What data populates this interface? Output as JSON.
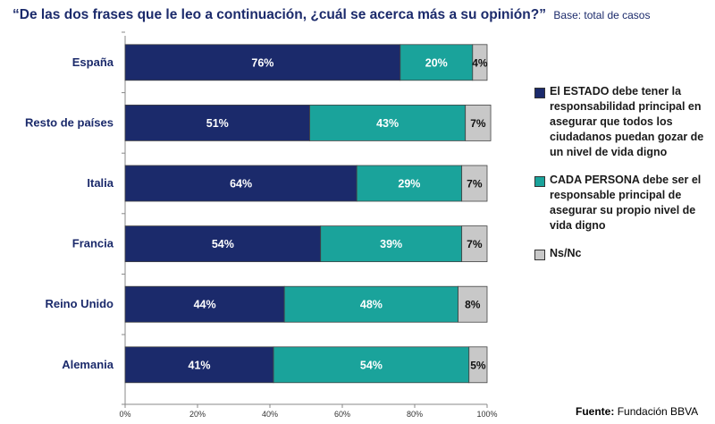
{
  "header": {
    "title": "“De las dos frases que le leo a continuación, ¿cuál se acerca más a su opinión?”",
    "subtitle": "Base: total de casos"
  },
  "chart_data": {
    "type": "bar",
    "orientation": "horizontal",
    "stacked": true,
    "categories": [
      "España",
      "Resto de países",
      "Italia",
      "Francia",
      "Reino Unido",
      "Alemania"
    ],
    "series": [
      {
        "name": "El ESTADO debe tener la responsabilidad principal en asegurar que todos los ciudadanos puedan gozar de un nivel de vida digno",
        "color": "#1b2a6b",
        "values": [
          76,
          51,
          64,
          54,
          44,
          41
        ],
        "labels": [
          "76%",
          "51%",
          "64%",
          "54%",
          "44%",
          "41%"
        ]
      },
      {
        "name": "CADA PERSONA debe ser el responsable principal de asegurar su propio nivel de vida digno",
        "color": "#1aa39b",
        "values": [
          20,
          43,
          29,
          39,
          48,
          54
        ],
        "labels": [
          "20%",
          "43%",
          "29%",
          "39%",
          "48%",
          "54%"
        ]
      },
      {
        "name": "Ns/Nc",
        "color": "#c8c8c8",
        "values": [
          4,
          7,
          7,
          7,
          8,
          5
        ],
        "labels": [
          "4%",
          "7%",
          "7%",
          "7%",
          "8%",
          "5%"
        ]
      }
    ],
    "x_ticks": [
      "0%",
      "20%",
      "40%",
      "60%",
      "80%",
      "100%"
    ],
    "xlim": [
      0,
      100
    ],
    "grid": false,
    "legend_position": "right"
  },
  "footer": {
    "source_label": "Fuente:",
    "source_value": "Fundación BBVA"
  }
}
